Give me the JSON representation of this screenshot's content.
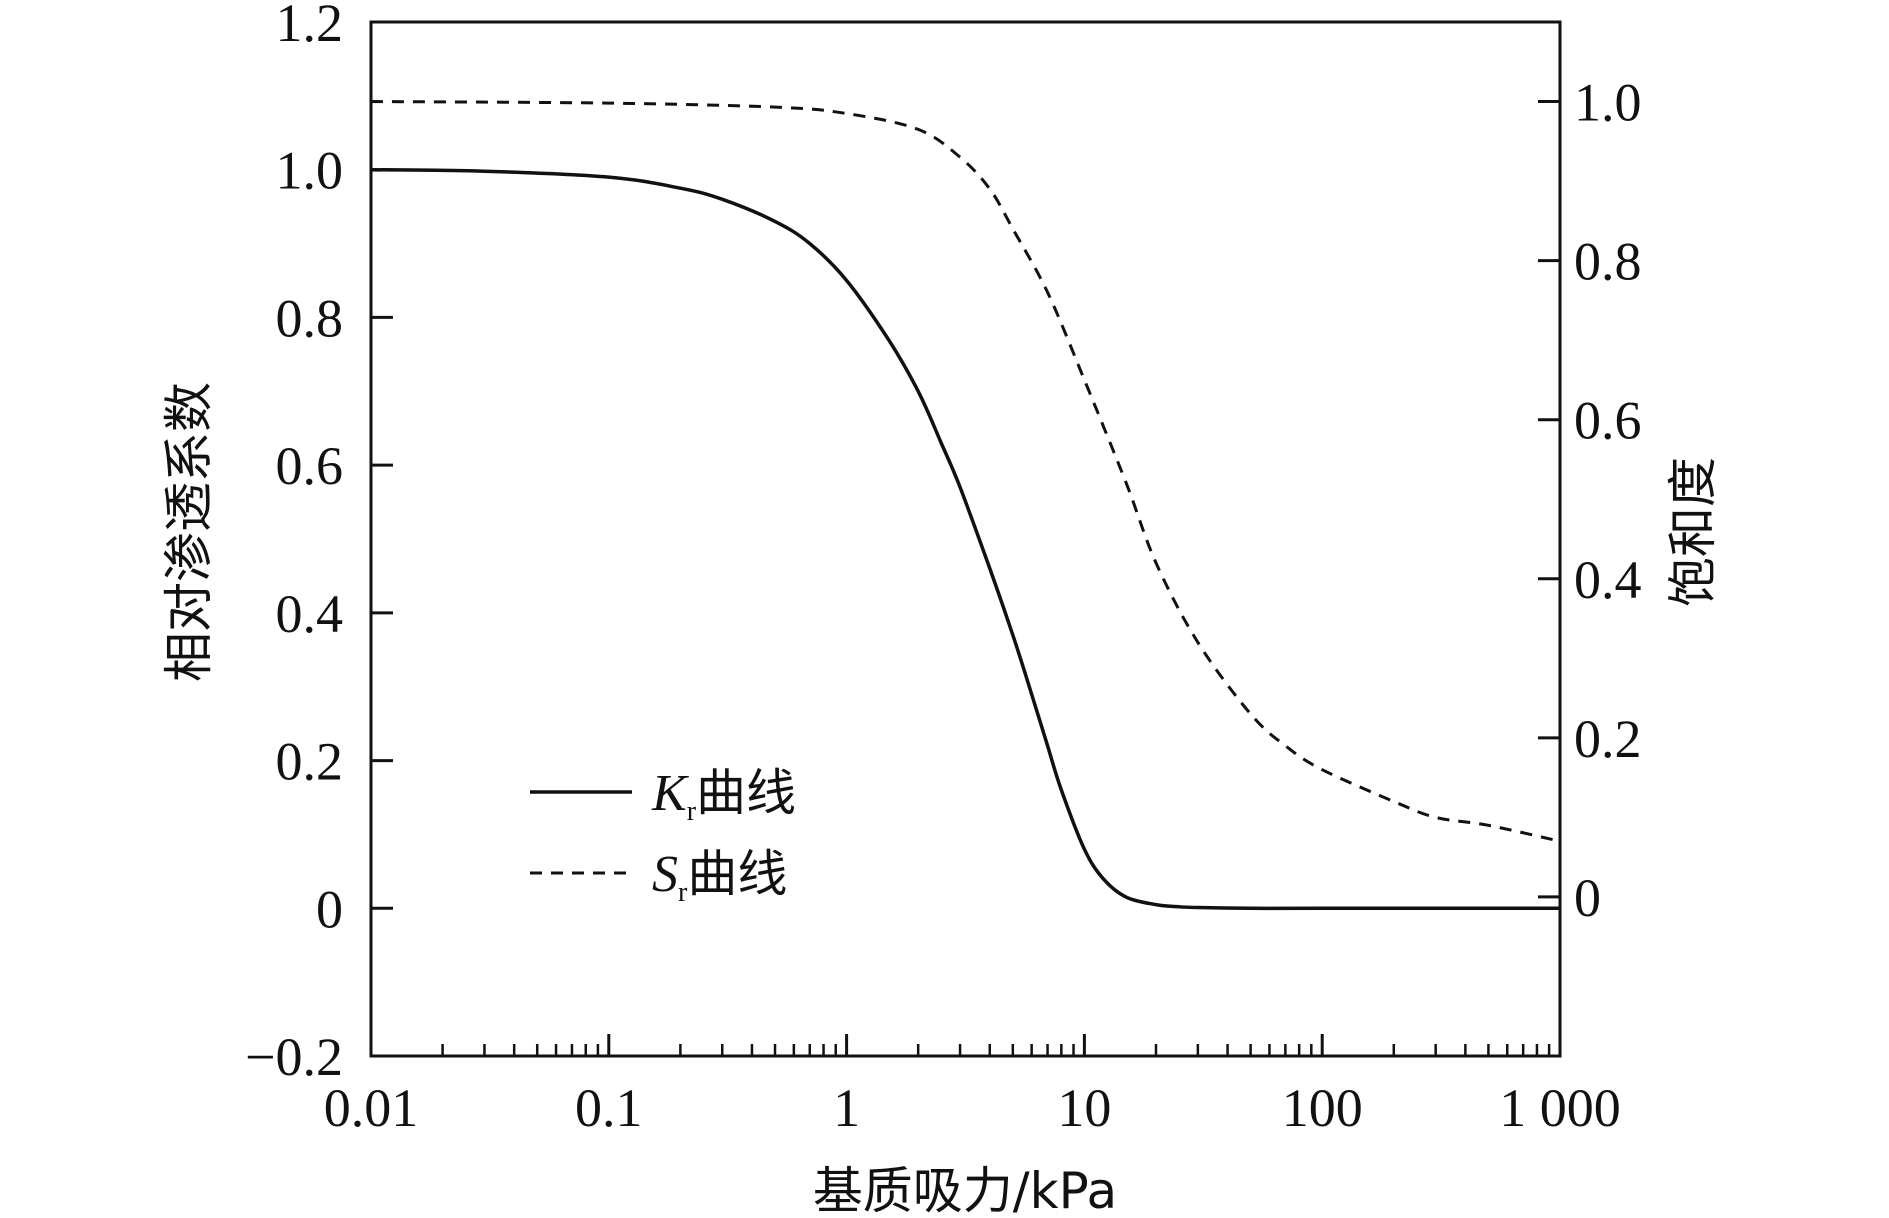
{
  "colors": {
    "ink": "#111111",
    "background": "#ffffff"
  },
  "chart_data": {
    "type": "line",
    "xscale": "log",
    "xlim": [
      0.01,
      1000
    ],
    "ylim": [
      -0.2,
      1.2
    ],
    "y2lim": [
      -0.2,
      1.1
    ],
    "xlabel": "基质吸力/kPa",
    "ylabel": "相对渗透系数",
    "y2label": "饱和度",
    "x_tick_labels": [
      {
        "value": 0.01,
        "label": "0.01"
      },
      {
        "value": 0.1,
        "label": "0.1"
      },
      {
        "value": 1,
        "label": "1"
      },
      {
        "value": 10,
        "label": "10"
      },
      {
        "value": 100,
        "label": "100"
      },
      {
        "value": 1000,
        "label": "1 000"
      }
    ],
    "y_tick_labels": [
      {
        "value": 1.2,
        "label": "1.2"
      },
      {
        "value": 1.0,
        "label": "1.0"
      },
      {
        "value": 0.8,
        "label": "0.8"
      },
      {
        "value": 0.6,
        "label": "0.6"
      },
      {
        "value": 0.4,
        "label": "0.4"
      },
      {
        "value": 0.2,
        "label": "0.2"
      },
      {
        "value": 0,
        "label": "0"
      },
      {
        "value": -0.2,
        "label": "−0.2"
      }
    ],
    "y2_tick_labels": [
      {
        "value": 1.0,
        "label": "1.0"
      },
      {
        "value": 0.8,
        "label": "0.8"
      },
      {
        "value": 0.6,
        "label": "0.6"
      },
      {
        "value": 0.4,
        "label": "0.4"
      },
      {
        "value": 0.2,
        "label": "0.2"
      },
      {
        "value": 0,
        "label": "0"
      }
    ],
    "series": [
      {
        "name": "Kr曲线",
        "legend_symbol": "K",
        "legend_sub": "r",
        "legend_suffix": "曲线",
        "axis": "left",
        "style": "solid",
        "x": [
          0.01,
          0.03,
          0.1,
          0.2,
          0.3,
          0.5,
          0.7,
          1,
          1.5,
          2,
          2.5,
          3,
          4,
          5,
          6,
          7,
          8,
          10,
          12,
          15,
          20,
          25,
          30,
          50,
          100,
          1000
        ],
        "y": [
          1.0,
          0.998,
          0.99,
          0.975,
          0.96,
          0.93,
          0.9,
          0.85,
          0.77,
          0.7,
          0.63,
          0.57,
          0.46,
          0.37,
          0.29,
          0.22,
          0.16,
          0.08,
          0.04,
          0.015,
          0.005,
          0.002,
          0.001,
          0.0,
          0.0,
          0.0
        ]
      },
      {
        "name": "Sr曲线",
        "legend_symbol": "S",
        "legend_sub": "r",
        "legend_suffix": "曲线",
        "axis": "right",
        "style": "dashed",
        "x": [
          0.01,
          0.1,
          0.5,
          1,
          2,
          3,
          4,
          5,
          7,
          10,
          15,
          20,
          30,
          50,
          70,
          100,
          200,
          300,
          500,
          1000
        ],
        "y": [
          1.0,
          0.998,
          0.993,
          0.985,
          0.965,
          0.93,
          0.89,
          0.84,
          0.76,
          0.65,
          0.52,
          0.42,
          0.32,
          0.23,
          0.19,
          0.16,
          0.12,
          0.1,
          0.09,
          0.07
        ]
      }
    ]
  }
}
